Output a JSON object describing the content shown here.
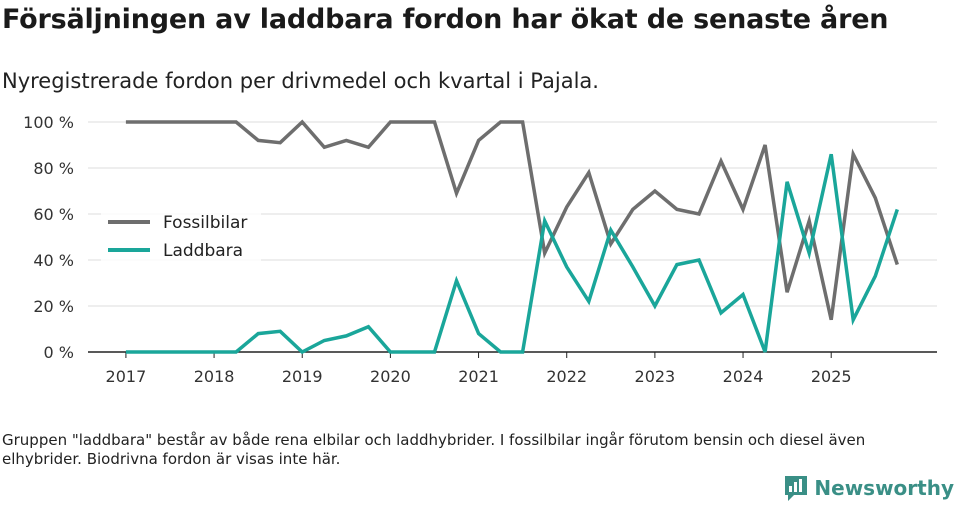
{
  "title": "Försäljningen av laddbara fordon har ökat de senaste åren",
  "subtitle": "Nyregistrerade fordon per drivmedel och kvartal i Pajala.",
  "footnote": "Gruppen \"laddbara\" består av både rena elbilar och laddhybrider. I fossilbilar ingår förutom bensin och diesel även elhybrider. Biodrivna fordon är visas inte här.",
  "brand": "Newsworthy",
  "chart_data": {
    "type": "line",
    "xlabel": "",
    "ylabel": "",
    "ylim": [
      0,
      100
    ],
    "y_ticks": [
      "0 %",
      "20 %",
      "40 %",
      "60 %",
      "80 %",
      "100 %"
    ],
    "y_tick_values": [
      0,
      20,
      40,
      60,
      80,
      100
    ],
    "x_ticks": [
      "2017",
      "2018",
      "2019",
      "2020",
      "2021",
      "2022",
      "2023",
      "2024",
      "2025"
    ],
    "x_tick_values": [
      2017,
      2018,
      2019,
      2020,
      2021,
      2022,
      2023,
      2024,
      2025
    ],
    "x": [
      2017.0,
      2017.25,
      2017.5,
      2017.75,
      2018.0,
      2018.25,
      2018.5,
      2018.75,
      2019.0,
      2019.25,
      2019.5,
      2019.75,
      2020.0,
      2020.25,
      2020.5,
      2020.75,
      2021.0,
      2021.25,
      2021.5,
      2021.75,
      2022.0,
      2022.25,
      2022.5,
      2022.75,
      2023.0,
      2023.25,
      2023.5,
      2023.75,
      2024.0,
      2024.25,
      2024.5,
      2024.75,
      2025.0,
      2025.25,
      2025.5,
      2025.75
    ],
    "legend_position": "left-middle",
    "series": [
      {
        "name": "Fossilbilar",
        "color": "#6e6e6e",
        "values": [
          100,
          100,
          100,
          100,
          100,
          100,
          92,
          91,
          100,
          89,
          92,
          89,
          100,
          100,
          100,
          69,
          92,
          100,
          100,
          43,
          63,
          78,
          47,
          62,
          70,
          62,
          60,
          83,
          62,
          90,
          26,
          57,
          14,
          86,
          67,
          38
        ]
      },
      {
        "name": "Laddbara",
        "color": "#1aa69a",
        "values": [
          0,
          0,
          0,
          0,
          0,
          0,
          8,
          9,
          0,
          5,
          7,
          11,
          0,
          0,
          0,
          31,
          8,
          0,
          0,
          57,
          37,
          22,
          53,
          37,
          20,
          38,
          40,
          17,
          25,
          0,
          74,
          43,
          86,
          14,
          33,
          62
        ]
      }
    ]
  }
}
